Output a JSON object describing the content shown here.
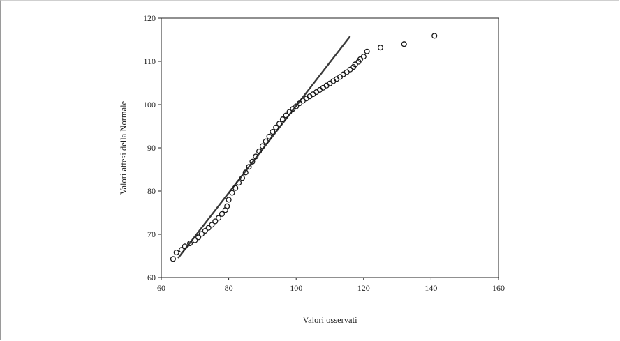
{
  "chart_data": {
    "type": "scatter",
    "title": "",
    "xlabel": "Valori osservati",
    "ylabel": "Valori attesi della Normale",
    "xlim": [
      60,
      160
    ],
    "ylim": [
      60,
      120
    ],
    "x_ticks": [
      "60",
      "80",
      "100",
      "120",
      "140",
      "160"
    ],
    "y_ticks": [
      "60",
      "70",
      "80",
      "90",
      "100",
      "110",
      "120"
    ],
    "grid": false,
    "legend": "none",
    "colors": {
      "points": "#1a1a1a",
      "line": "#3a3a3a",
      "axis": "#222222"
    },
    "series": [
      {
        "kind": "points",
        "values": [
          [
            63.5,
            64.3
          ],
          [
            64.5,
            65.8
          ],
          [
            66,
            66.4
          ],
          [
            67,
            67.2
          ],
          [
            68.5,
            67.9
          ],
          [
            70,
            68.6
          ],
          [
            71,
            69.3
          ],
          [
            72,
            70.1
          ],
          [
            73,
            70.8
          ],
          [
            74,
            71.5
          ],
          [
            75,
            72.2
          ],
          [
            76,
            73.0
          ],
          [
            77,
            73.8
          ],
          [
            78,
            74.7
          ],
          [
            79,
            75.6
          ],
          [
            79.5,
            76.5
          ],
          [
            80,
            78.0
          ],
          [
            81,
            79.6
          ],
          [
            82,
            80.7
          ],
          [
            83,
            81.9
          ],
          [
            84,
            83.0
          ],
          [
            85,
            84.3
          ],
          [
            86,
            85.6
          ],
          [
            87,
            86.8
          ],
          [
            88,
            88.0
          ],
          [
            89,
            89.2
          ],
          [
            90,
            90.4
          ],
          [
            91,
            91.5
          ],
          [
            92,
            92.6
          ],
          [
            93,
            93.7
          ],
          [
            94,
            94.7
          ],
          [
            95,
            95.6
          ],
          [
            96,
            96.6
          ],
          [
            97,
            97.5
          ],
          [
            98,
            98.3
          ],
          [
            99,
            99.0
          ],
          [
            100,
            99.6
          ],
          [
            101,
            100.3
          ],
          [
            102,
            100.9
          ],
          [
            103,
            101.4
          ],
          [
            104,
            101.9
          ],
          [
            105,
            102.4
          ],
          [
            106,
            102.9
          ],
          [
            107,
            103.4
          ],
          [
            108,
            103.9
          ],
          [
            109,
            104.4
          ],
          [
            110,
            104.9
          ],
          [
            111,
            105.4
          ],
          [
            112,
            105.9
          ],
          [
            113,
            106.4
          ],
          [
            114,
            107.0
          ],
          [
            115,
            107.5
          ],
          [
            116,
            108.1
          ],
          [
            117,
            108.7
          ],
          [
            117.5,
            109.3
          ],
          [
            118.5,
            109.9
          ],
          [
            119,
            110.5
          ],
          [
            120,
            111.1
          ],
          [
            121,
            112.3
          ],
          [
            125,
            113.2
          ],
          [
            132,
            114.0
          ],
          [
            141,
            115.9
          ]
        ]
      },
      {
        "kind": "reference-line",
        "values": [
          [
            65,
            64.5
          ],
          [
            116,
            115.8
          ]
        ]
      }
    ]
  }
}
